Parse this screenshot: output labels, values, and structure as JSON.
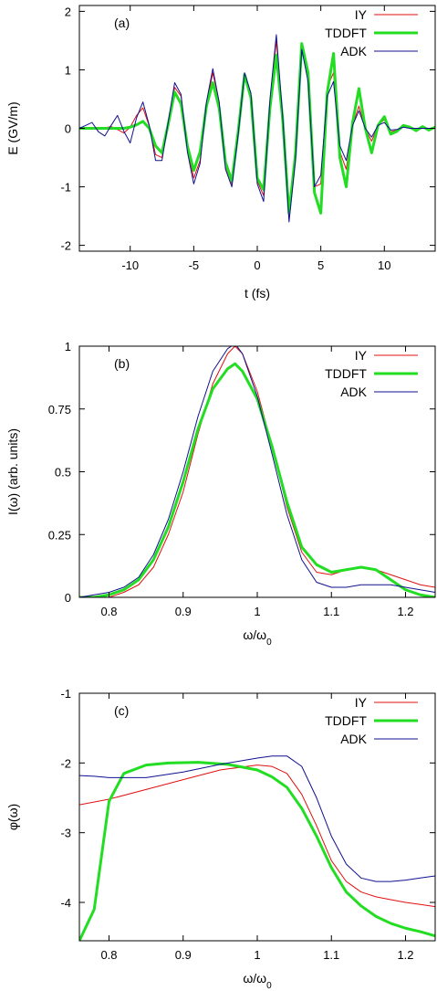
{
  "colors": {
    "IY": "#e01010",
    "TDDFT": "#22dd22",
    "ADK": "#101090",
    "frame": "#000000"
  },
  "chart_data": [
    {
      "type": "line",
      "panel_label": "(a)",
      "xlabel": "t (fs)",
      "ylabel": "E (GV/m)",
      "xlim": [
        -14,
        14
      ],
      "ylim": [
        -2.1,
        2.1
      ],
      "xticks": [
        -10,
        -5,
        0,
        5,
        10
      ],
      "xtick_labels": [
        "-10",
        "-5",
        "0",
        "5",
        "10"
      ],
      "yticks": [
        -2,
        -1,
        0,
        1,
        2
      ],
      "ytick_labels": [
        "-2",
        "-1",
        "0",
        "1",
        "2"
      ],
      "legend_position": "top-right",
      "series": [
        {
          "name": "IY",
          "color_key": "IY",
          "width": 1,
          "x": [
            -14.0,
            -13.5,
            -13.0,
            -12.5,
            -12.0,
            -11.5,
            -11.0,
            -10.5,
            -10.0,
            -9.5,
            -9.0,
            -8.5,
            -8.0,
            -7.5,
            -7.0,
            -6.5,
            -6.0,
            -5.5,
            -5.0,
            -4.5,
            -4.0,
            -3.5,
            -3.0,
            -2.5,
            -2.0,
            -1.5,
            -1.0,
            -0.5,
            0.0,
            0.5,
            1.0,
            1.5,
            2.0,
            2.5,
            3.0,
            3.5,
            4.0,
            4.5,
            5.0,
            5.5,
            6.0,
            6.5,
            7.0,
            7.5,
            8.0,
            8.5,
            9.0,
            9.5,
            10.0,
            10.5,
            11.0,
            11.5,
            12.0,
            12.5,
            13.0,
            13.5,
            14.0
          ],
          "y": [
            0.0,
            0.0,
            0.01,
            -0.02,
            0.01,
            0.03,
            -0.02,
            -0.08,
            0.02,
            0.22,
            0.35,
            0.04,
            -0.45,
            -0.5,
            0.1,
            0.7,
            0.55,
            -0.35,
            -0.85,
            -0.55,
            0.4,
            0.95,
            0.45,
            -0.65,
            -0.95,
            -0.1,
            0.92,
            0.55,
            -0.9,
            -1.15,
            0.45,
            1.5,
            0.15,
            -1.55,
            -0.5,
            1.45,
            0.85,
            -1.0,
            -0.95,
            0.7,
            0.95,
            -0.4,
            -0.7,
            0.05,
            0.38,
            0.0,
            -0.22,
            0.05,
            0.15,
            -0.06,
            -0.03,
            0.04,
            0.0,
            -0.01,
            0.01,
            0.0,
            0.0
          ]
        },
        {
          "name": "TDDFT",
          "color_key": "TDDFT",
          "width": 3,
          "x": [
            -14.0,
            -13.5,
            -13.0,
            -12.5,
            -12.0,
            -11.5,
            -11.0,
            -10.5,
            -10.0,
            -9.5,
            -9.0,
            -8.5,
            -8.0,
            -7.5,
            -7.0,
            -6.5,
            -6.0,
            -5.5,
            -5.0,
            -4.5,
            -4.0,
            -3.5,
            -3.0,
            -2.5,
            -2.0,
            -1.5,
            -1.0,
            -0.5,
            0.0,
            0.5,
            1.0,
            1.5,
            2.0,
            2.5,
            3.0,
            3.5,
            4.0,
            4.5,
            5.0,
            5.5,
            6.0,
            6.5,
            7.0,
            7.5,
            8.0,
            8.5,
            9.0,
            9.5,
            10.0,
            10.5,
            11.0,
            11.5,
            12.0,
            12.5,
            13.0,
            13.5,
            14.0
          ],
          "y": [
            0.0,
            0.0,
            0.0,
            0.0,
            0.0,
            0.0,
            0.0,
            0.0,
            0.02,
            0.06,
            0.12,
            0.0,
            -0.3,
            -0.42,
            0.08,
            0.62,
            0.42,
            -0.3,
            -0.72,
            -0.4,
            0.38,
            0.78,
            0.35,
            -0.58,
            -0.9,
            -0.05,
            0.92,
            0.52,
            -0.85,
            -1.05,
            0.35,
            1.25,
            0.15,
            -1.45,
            -0.45,
            1.45,
            0.95,
            -1.1,
            -1.45,
            0.6,
            1.28,
            -0.5,
            -1.0,
            0.1,
            0.68,
            0.0,
            -0.42,
            0.05,
            0.2,
            -0.1,
            -0.05,
            0.05,
            0.02,
            -0.04,
            0.03,
            -0.03,
            0.02
          ]
        },
        {
          "name": "ADK",
          "color_key": "ADK",
          "width": 1,
          "x": [
            -14.0,
            -13.5,
            -13.0,
            -12.5,
            -12.0,
            -11.5,
            -11.0,
            -10.5,
            -10.0,
            -9.5,
            -9.0,
            -8.5,
            -8.0,
            -7.5,
            -7.0,
            -6.5,
            -6.0,
            -5.5,
            -5.0,
            -4.5,
            -4.0,
            -3.5,
            -3.0,
            -2.5,
            -2.0,
            -1.5,
            -1.0,
            -0.5,
            0.0,
            0.5,
            1.0,
            1.5,
            2.0,
            2.5,
            3.0,
            3.5,
            4.0,
            4.5,
            5.0,
            5.5,
            6.0,
            6.5,
            7.0,
            7.5,
            8.0,
            8.5,
            9.0,
            9.5,
            10.0,
            10.5,
            11.0,
            11.5,
            12.0,
            12.5,
            13.0,
            13.5,
            14.0
          ],
          "y": [
            0.0,
            0.05,
            0.1,
            -0.06,
            -0.13,
            0.05,
            0.22,
            -0.05,
            -0.25,
            0.18,
            0.45,
            0.05,
            -0.55,
            -0.55,
            0.12,
            0.78,
            0.58,
            -0.4,
            -0.95,
            -0.6,
            0.45,
            1.02,
            0.45,
            -0.7,
            -1.0,
            -0.1,
            0.95,
            0.6,
            -0.95,
            -1.25,
            0.5,
            1.6,
            0.2,
            -1.6,
            -0.55,
            1.35,
            0.8,
            -1.0,
            -0.8,
            0.55,
            0.8,
            -0.3,
            -0.55,
            0.05,
            0.3,
            0.0,
            -0.15,
            0.05,
            0.1,
            -0.03,
            -0.02,
            0.02,
            0.0,
            0.0,
            0.0,
            0.0,
            0.0
          ]
        }
      ]
    },
    {
      "type": "line",
      "panel_label": "(b)",
      "xlabel": "ω/ω",
      "xlabel_sub": "0",
      "ylabel": "I(ω) (arb. units)",
      "xlim": [
        0.76,
        1.24
      ],
      "ylim": [
        0,
        1
      ],
      "xticks": [
        0.8,
        0.9,
        1.0,
        1.1,
        1.2
      ],
      "xtick_labels": [
        "0.8",
        "0.9",
        "1",
        "1.1",
        "1.2"
      ],
      "yticks": [
        0,
        0.25,
        0.5,
        0.75,
        1
      ],
      "ytick_labels": [
        "0",
        "0.25",
        "0.5",
        "0.75",
        "1"
      ],
      "legend_position": "top-right",
      "series": [
        {
          "name": "IY",
          "color_key": "IY",
          "width": 1,
          "x": [
            0.76,
            0.78,
            0.8,
            0.82,
            0.84,
            0.86,
            0.88,
            0.9,
            0.92,
            0.94,
            0.96,
            0.97,
            0.98,
            1.0,
            1.02,
            1.04,
            1.06,
            1.08,
            1.1,
            1.12,
            1.14,
            1.16,
            1.18,
            1.2,
            1.22,
            1.24
          ],
          "y": [
            0.0,
            0.0,
            0.0,
            0.02,
            0.05,
            0.12,
            0.25,
            0.42,
            0.65,
            0.85,
            0.97,
            1.0,
            0.97,
            0.82,
            0.6,
            0.36,
            0.18,
            0.1,
            0.09,
            0.11,
            0.12,
            0.11,
            0.09,
            0.07,
            0.05,
            0.04
          ]
        },
        {
          "name": "TDDFT",
          "color_key": "TDDFT",
          "width": 3,
          "x": [
            0.76,
            0.78,
            0.8,
            0.82,
            0.84,
            0.86,
            0.88,
            0.9,
            0.92,
            0.94,
            0.96,
            0.97,
            0.98,
            1.0,
            1.02,
            1.04,
            1.06,
            1.08,
            1.1,
            1.12,
            1.14,
            1.16,
            1.18,
            1.2,
            1.22,
            1.24
          ],
          "y": [
            0.0,
            0.0,
            0.01,
            0.03,
            0.07,
            0.15,
            0.28,
            0.46,
            0.67,
            0.83,
            0.91,
            0.93,
            0.9,
            0.79,
            0.6,
            0.38,
            0.2,
            0.13,
            0.1,
            0.11,
            0.12,
            0.11,
            0.07,
            0.03,
            0.01,
            0.0
          ]
        },
        {
          "name": "ADK",
          "color_key": "ADK",
          "width": 1,
          "x": [
            0.76,
            0.78,
            0.8,
            0.82,
            0.84,
            0.86,
            0.88,
            0.9,
            0.92,
            0.94,
            0.96,
            0.97,
            0.98,
            1.0,
            1.02,
            1.04,
            1.06,
            1.08,
            1.1,
            1.12,
            1.14,
            1.16,
            1.18,
            1.2,
            1.22,
            1.24
          ],
          "y": [
            0.0,
            0.01,
            0.02,
            0.04,
            0.08,
            0.17,
            0.31,
            0.5,
            0.72,
            0.9,
            0.99,
            1.01,
            0.97,
            0.8,
            0.57,
            0.33,
            0.15,
            0.06,
            0.04,
            0.04,
            0.05,
            0.05,
            0.05,
            0.04,
            0.03,
            0.02
          ]
        }
      ]
    },
    {
      "type": "line",
      "panel_label": "(c)",
      "xlabel": "ω/ω",
      "xlabel_sub": "0",
      "ylabel": "φ(ω)",
      "xlim": [
        0.76,
        1.24
      ],
      "ylim": [
        -4.55,
        -1
      ],
      "xticks": [
        0.8,
        0.9,
        1.0,
        1.1,
        1.2
      ],
      "xtick_labels": [
        "0.8",
        "0.9",
        "1",
        "1.1",
        "1.2"
      ],
      "yticks": [
        -4,
        -3,
        -2,
        -1
      ],
      "ytick_labels": [
        "-4",
        "-3",
        "-2",
        "-1"
      ],
      "legend_position": "top-right",
      "series": [
        {
          "name": "IY",
          "color_key": "IY",
          "width": 1,
          "x": [
            0.76,
            0.8,
            0.85,
            0.9,
            0.95,
            1.0,
            1.02,
            1.04,
            1.06,
            1.08,
            1.1,
            1.12,
            1.14,
            1.16,
            1.18,
            1.2,
            1.22,
            1.24
          ],
          "y": [
            -2.6,
            -2.52,
            -2.38,
            -2.24,
            -2.1,
            -2.03,
            -2.05,
            -2.15,
            -2.45,
            -2.9,
            -3.4,
            -3.7,
            -3.85,
            -3.92,
            -3.96,
            -4.0,
            -4.03,
            -4.06
          ]
        },
        {
          "name": "TDDFT",
          "color_key": "TDDFT",
          "width": 3,
          "x": [
            0.76,
            0.78,
            0.8,
            0.82,
            0.85,
            0.88,
            0.92,
            0.96,
            1.0,
            1.02,
            1.04,
            1.06,
            1.08,
            1.1,
            1.12,
            1.14,
            1.16,
            1.18,
            1.2,
            1.22,
            1.24
          ],
          "y": [
            -4.55,
            -4.1,
            -2.55,
            -2.15,
            -2.03,
            -2.0,
            -1.99,
            -2.02,
            -2.1,
            -2.2,
            -2.35,
            -2.65,
            -3.05,
            -3.5,
            -3.85,
            -4.05,
            -4.2,
            -4.3,
            -4.37,
            -4.42,
            -4.48
          ]
        },
        {
          "name": "ADK",
          "color_key": "ADK",
          "width": 1,
          "x": [
            0.76,
            0.78,
            0.8,
            0.85,
            0.9,
            0.95,
            1.0,
            1.02,
            1.04,
            1.06,
            1.08,
            1.1,
            1.12,
            1.14,
            1.16,
            1.18,
            1.2,
            1.22,
            1.24
          ],
          "y": [
            -2.18,
            -2.19,
            -2.21,
            -2.21,
            -2.13,
            -2.02,
            -1.93,
            -1.9,
            -1.9,
            -2.05,
            -2.5,
            -3.05,
            -3.45,
            -3.65,
            -3.7,
            -3.7,
            -3.68,
            -3.65,
            -3.62
          ]
        }
      ]
    }
  ]
}
